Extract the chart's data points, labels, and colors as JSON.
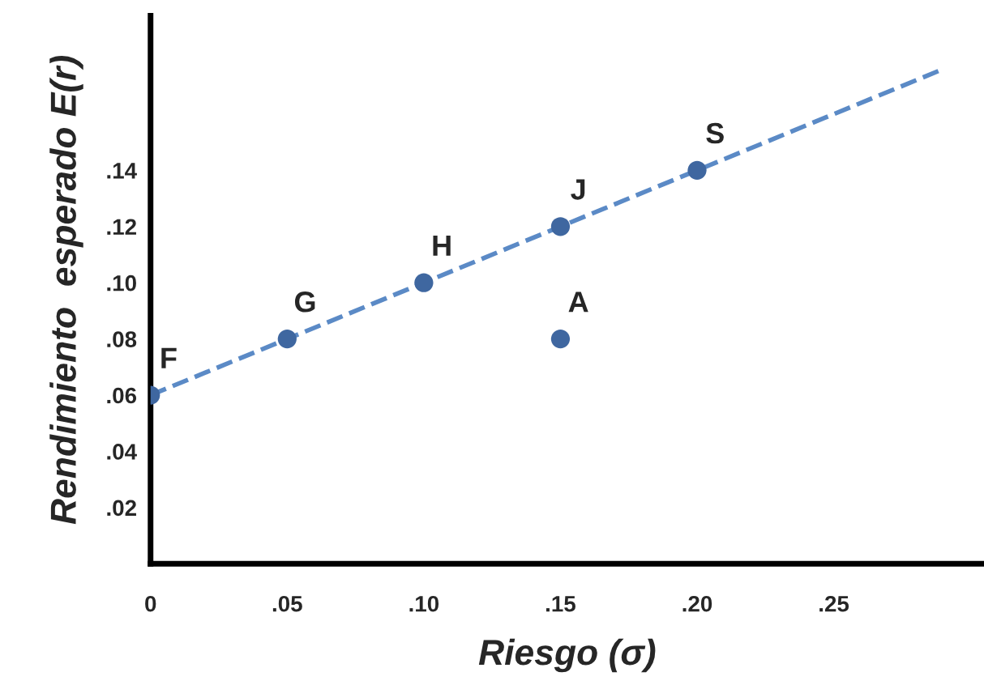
{
  "chart_data": {
    "type": "scatter",
    "xlabel": "Riesgo (σ)",
    "ylabel": "Rendimiento  esperado E(r)",
    "xlim": [
      0,
      0.305
    ],
    "ylim": [
      0,
      0.195
    ],
    "xticks": [
      0,
      {
        "value": 0.05,
        "label": ".05"
      },
      {
        "value": 0.1,
        "label": ".10"
      },
      {
        "value": 0.15,
        "label": ".15"
      },
      {
        "value": 0.2,
        "label": ".20"
      },
      {
        "value": 0.25,
        "label": ".25"
      }
    ],
    "yticks": [
      {
        "value": 0.02,
        "label": ".02"
      },
      {
        "value": 0.04,
        "label": ".04"
      },
      {
        "value": 0.06,
        "label": ".06"
      },
      {
        "value": 0.08,
        "label": ".08"
      },
      {
        "value": 0.1,
        "label": ".10"
      },
      {
        "value": 0.12,
        "label": ".12"
      },
      {
        "value": 0.14,
        "label": ".14"
      }
    ],
    "grid": false,
    "marker": "circle",
    "series": [
      {
        "type": "line",
        "color": "#5b8ac6",
        "line_style": "dashed",
        "marker": "none",
        "x": [
          0,
          0.29
        ],
        "values": [
          0.06,
          0.176
        ]
      },
      {
        "color": "#3f67a0",
        "x": [
          0,
          0.05,
          0.1,
          0.15,
          0.2,
          0.15
        ],
        "values": [
          0.06,
          0.08,
          0.1,
          0.12,
          0.14,
          0.08
        ]
      }
    ],
    "annotations": [
      {
        "text": "F",
        "x": 0,
        "y": 0.06
      },
      {
        "text": "G",
        "x": 0.05,
        "y": 0.08
      },
      {
        "text": "H",
        "x": 0.1,
        "y": 0.1
      },
      {
        "text": "J",
        "x": 0.15,
        "y": 0.12
      },
      {
        "text": "S",
        "x": 0.2,
        "y": 0.14
      },
      {
        "text": "A",
        "x": 0.15,
        "y": 0.08
      }
    ]
  }
}
